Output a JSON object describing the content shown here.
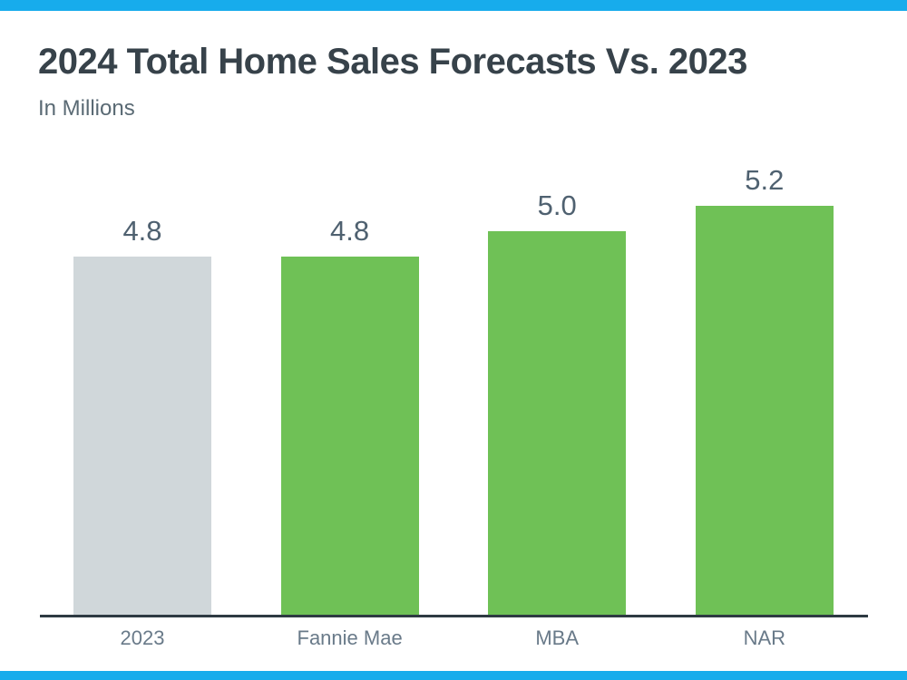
{
  "page": {
    "background": "#FFFFFF",
    "accent_color": "#17ACEC"
  },
  "header": {
    "title": "2024 Total Home Sales Forecasts Vs. 2023",
    "subtitle": "In Millions"
  },
  "chart_data": {
    "type": "bar",
    "title": "2024 Total Home Sales Forecasts Vs. 2023",
    "subtitle": "In Millions",
    "units": "Millions",
    "categories": [
      "2023",
      "Fannie Mae",
      "MBA",
      "NAR"
    ],
    "values": [
      4.8,
      4.8,
      5.0,
      5.2
    ],
    "value_labels": [
      "4.8",
      "4.8",
      "5.0",
      "5.2"
    ],
    "bar_colors": [
      "#D0D7DA",
      "#6FC156",
      "#6FC156",
      "#6FC156"
    ],
    "baseline_bar_color": "#D0D7DA",
    "forecast_bar_color": "#6FC156",
    "value_label_color": "#4F6170",
    "category_label_color": "#697A89",
    "axis_color": "#2E3A42",
    "ylim": [
      2.0,
      5.5
    ],
    "grid": false,
    "legend": false,
    "xlabel": "",
    "ylabel": ""
  }
}
